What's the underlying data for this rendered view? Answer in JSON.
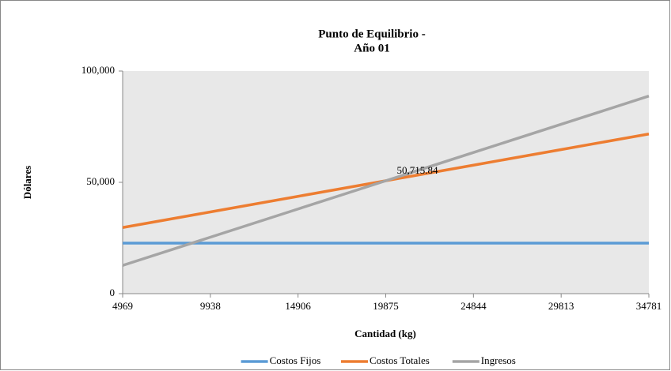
{
  "chart_data": {
    "type": "line",
    "title": [
      "Punto de Equilibrio  -",
      "Año 01"
    ],
    "x_label": "Cantidad (kg)",
    "y_label": "Dólares",
    "x": [
      4969,
      9938,
      14906,
      19875,
      24844,
      29813,
      34781
    ],
    "series": [
      {
        "name": "Costos Fijos",
        "color": "#5b9bd5",
        "values": [
          22700,
          22700,
          22700,
          22700,
          22700,
          22700,
          22700
        ]
      },
      {
        "name": "Costos Totales",
        "color": "#ed7d31",
        "values": [
          29704,
          36709,
          43712,
          50716,
          57721,
          64725,
          71727
        ]
      },
      {
        "name": "Ingresos",
        "color": "#a5a5a5",
        "values": [
          12680,
          25360,
          38037,
          50716,
          63397,
          76077,
          88754
        ]
      }
    ],
    "annotations": [
      {
        "x": 19875,
        "y": 50715.84,
        "label": "50,715.84"
      }
    ],
    "xlim": [
      4969,
      34781
    ],
    "xticks": [
      4969,
      9938,
      14906,
      19875,
      24844,
      29813,
      34781
    ],
    "ylim": [
      0,
      100000
    ],
    "yticks": [
      0,
      {
        "value": 50000,
        "label": "50,000"
      },
      {
        "value": 100000,
        "label": "100,000"
      }
    ],
    "grid": false,
    "legend": "bottom",
    "background": "#e8e8e8"
  }
}
